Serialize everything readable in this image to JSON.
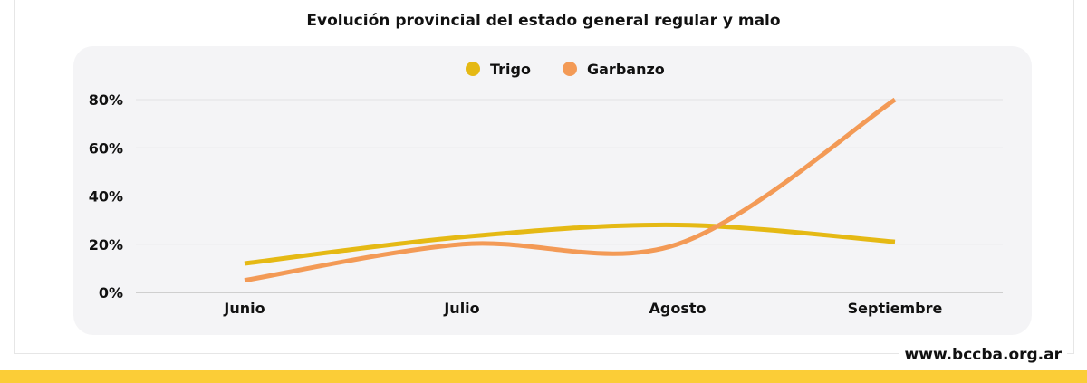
{
  "footer": {
    "url": "www.bccba.org.ar"
  },
  "chart_data": {
    "type": "line",
    "title": "Evolución provincial del estado general regular y malo",
    "categories": [
      "Junio",
      "Julio",
      "Agosto",
      "Septiembre"
    ],
    "series": [
      {
        "name": "Trigo",
        "color": "#e5b914",
        "values": [
          12,
          23,
          28,
          21
        ]
      },
      {
        "name": "Garbanzo",
        "color": "#f39a56",
        "values": [
          5,
          20,
          20,
          80
        ]
      }
    ],
    "ylim": [
      0,
      80
    ],
    "yticks": [
      0,
      20,
      40,
      60,
      80
    ],
    "ytick_labels": [
      "0%",
      "20%",
      "40%",
      "60%",
      "80%"
    ],
    "grid": true,
    "legend": "top-center"
  }
}
